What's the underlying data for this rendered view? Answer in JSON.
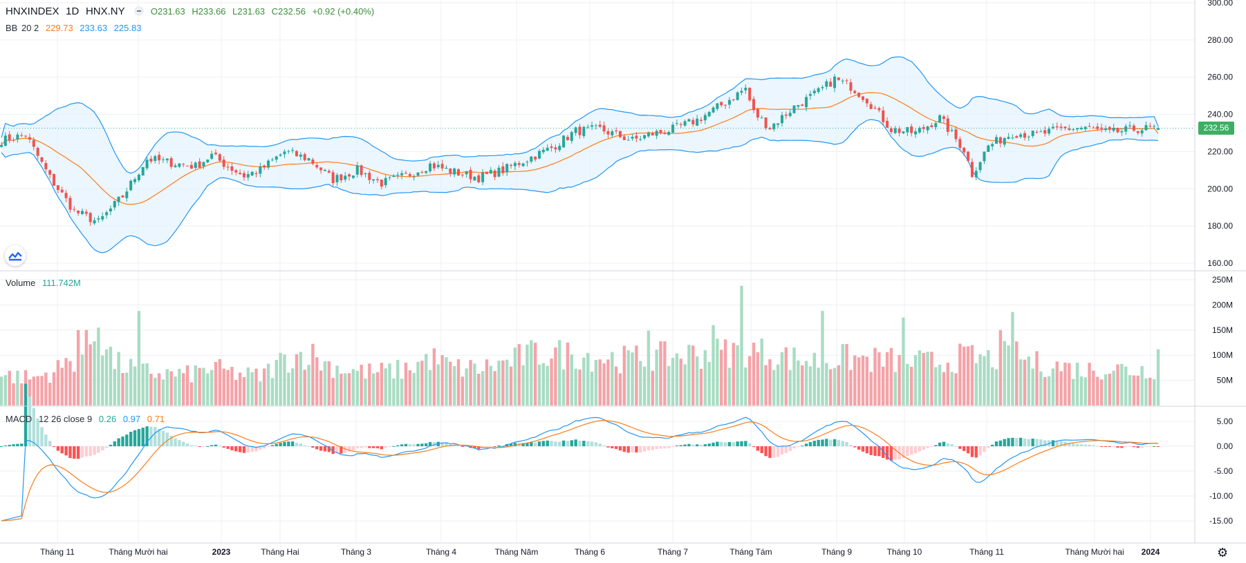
{
  "header": {
    "symbol": "HNXINDEX",
    "interval": "1D",
    "exchange": "HNX.NY",
    "open": "O231.63",
    "high": "H233.66",
    "low": "L231.63",
    "close": "C232.56",
    "change": "+0.92 (+0.40%)"
  },
  "indicators": {
    "bb": {
      "label": "BB",
      "params": "20 2",
      "basis": "229.73",
      "upper": "233.63",
      "lower": "225.83"
    },
    "volume": {
      "label": "Volume",
      "value": "111.742M"
    },
    "macd": {
      "label": "MACD",
      "params": "12 26 close 9",
      "hist": "0.26",
      "macd": "0.97",
      "signal": "0.71"
    }
  },
  "last_price_tag": "232.56",
  "colors": {
    "up": "#26a69a",
    "down": "#ef5350",
    "vol_up": "#a9dcc3",
    "vol_down": "#f4a3a8",
    "bb_basis": "#ff7a18",
    "bb_band": "#2196f3",
    "bb_fill": "#e3f2fd",
    "macd_line": "#2196f3",
    "signal_line": "#ff7a18",
    "hist_pos_strong": "#26a69a",
    "hist_pos_weak": "#b2dfdb",
    "hist_neg_strong": "#ff5252",
    "hist_neg_weak": "#ffcdd2",
    "grid": "#eceff3",
    "price_tag_bg": "#3fae63"
  },
  "chart_data": {
    "type": "candlestick",
    "x_labels": [
      "Tháng 11",
      "Tháng Mười hai",
      "2023",
      "Tháng Hai",
      "Tháng 3",
      "Tháng 4",
      "Tháng Năm",
      "Tháng 6",
      "Tháng 7",
      "Tháng Tám",
      "Tháng 9",
      "Tháng 10",
      "Tháng 11",
      "Tháng Mười hai",
      "2024"
    ],
    "price_axis": {
      "ticks": [
        "300.00",
        "280.00",
        "260.00",
        "240.00",
        "220.00",
        "200.00",
        "180.00",
        "160.00"
      ],
      "ylim": [
        155,
        302
      ]
    },
    "volume_axis": {
      "ticks": [
        "250M",
        "200M",
        "150M",
        "100M",
        "50M"
      ],
      "ylim": [
        0,
        252
      ]
    },
    "macd_axis": {
      "ticks": [
        "5.00",
        "0.00",
        "-5.00",
        "-10.00",
        "-15.00"
      ],
      "ylim": [
        -18.5,
        6.5
      ]
    },
    "close_anchors": [
      [
        0,
        226
      ],
      [
        6,
        229
      ],
      [
        12,
        206
      ],
      [
        18,
        188
      ],
      [
        24,
        182
      ],
      [
        30,
        196
      ],
      [
        36,
        216
      ],
      [
        42,
        214
      ],
      [
        48,
        212
      ],
      [
        52,
        218
      ],
      [
        56,
        212
      ],
      [
        60,
        207
      ],
      [
        64,
        210
      ],
      [
        70,
        220
      ],
      [
        76,
        216
      ],
      [
        82,
        205
      ],
      [
        88,
        210
      ],
      [
        94,
        203
      ],
      [
        100,
        207
      ],
      [
        106,
        213
      ],
      [
        112,
        209
      ],
      [
        118,
        206
      ],
      [
        124,
        210
      ],
      [
        130,
        216
      ],
      [
        136,
        222
      ],
      [
        142,
        231
      ],
      [
        148,
        232
      ],
      [
        152,
        229
      ],
      [
        156,
        226
      ],
      [
        160,
        229
      ],
      [
        166,
        232
      ],
      [
        172,
        237
      ],
      [
        178,
        245
      ],
      [
        184,
        254
      ],
      [
        186,
        241
      ],
      [
        190,
        233
      ],
      [
        196,
        244
      ],
      [
        202,
        252
      ],
      [
        206,
        259
      ],
      [
        210,
        255
      ],
      [
        214,
        248
      ],
      [
        220,
        232
      ],
      [
        226,
        230
      ],
      [
        232,
        238
      ],
      [
        238,
        221
      ],
      [
        240,
        208
      ],
      [
        244,
        223
      ],
      [
        250,
        230
      ],
      [
        256,
        229
      ],
      [
        262,
        232
      ],
      [
        268,
        233
      ],
      [
        274,
        230
      ],
      [
        280,
        232
      ],
      [
        286,
        232.6
      ]
    ],
    "volume_anchors": [
      [
        0,
        70
      ],
      [
        8,
        62
      ],
      [
        14,
        82
      ],
      [
        20,
        120
      ],
      [
        24,
        170
      ],
      [
        28,
        96
      ],
      [
        34,
        80
      ],
      [
        40,
        72
      ],
      [
        46,
        70
      ],
      [
        52,
        85
      ],
      [
        58,
        72
      ],
      [
        64,
        66
      ],
      [
        70,
        105
      ],
      [
        76,
        120
      ],
      [
        80,
        95
      ],
      [
        86,
        80
      ],
      [
        92,
        75
      ],
      [
        100,
        82
      ],
      [
        106,
        108
      ],
      [
        112,
        85
      ],
      [
        118,
        84
      ],
      [
        124,
        95
      ],
      [
        130,
        115
      ],
      [
        136,
        118
      ],
      [
        142,
        116
      ],
      [
        148,
        110
      ],
      [
        154,
        105
      ],
      [
        160,
        110
      ],
      [
        166,
        112
      ],
      [
        172,
        118
      ],
      [
        178,
        120
      ],
      [
        184,
        126
      ],
      [
        190,
        118
      ],
      [
        196,
        106
      ],
      [
        202,
        100
      ],
      [
        208,
        108
      ],
      [
        214,
        104
      ],
      [
        220,
        102
      ],
      [
        226,
        98
      ],
      [
        232,
        98
      ],
      [
        238,
        110
      ],
      [
        244,
        105
      ],
      [
        250,
        116
      ],
      [
        256,
        95
      ],
      [
        262,
        88
      ],
      [
        268,
        80
      ],
      [
        274,
        86
      ],
      [
        280,
        80
      ],
      [
        286,
        85
      ]
    ],
    "volume_spikes": [
      [
        34,
        188
      ],
      [
        183,
        238
      ],
      [
        203,
        188
      ],
      [
        223,
        175
      ],
      [
        247,
        150
      ],
      [
        250,
        186
      ],
      [
        24,
        155
      ],
      [
        19,
        150
      ],
      [
        160,
        149
      ],
      [
        176,
        160
      ]
    ],
    "volume_last": 111.742
  }
}
